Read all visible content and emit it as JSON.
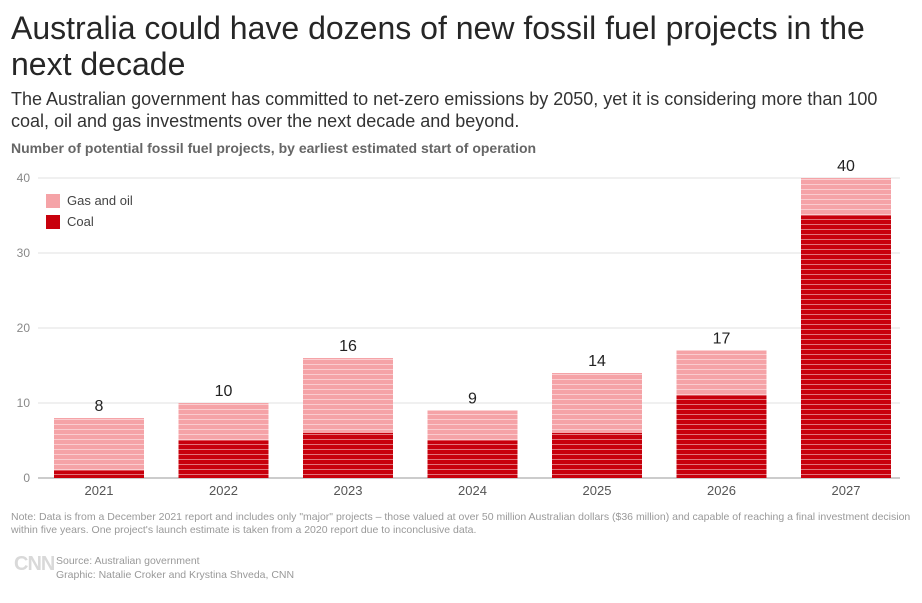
{
  "header": {
    "title": "Australia could have dozens of new fossil fuel projects in the next decade",
    "subtitle": "The Australian government has committed to net-zero emissions by 2050, yet it is considering more than 100 coal, oil and gas investments over the next decade and beyond.",
    "chart_label": "Number of potential fossil fuel projects, by earliest estimated start of operation"
  },
  "footer": {
    "note": "Note: Data is from a December 2021 report and includes only \"major\" projects – those valued at over 50 million Australian dollars ($36 million) and capable of reaching a final investment decision within five years. One project's launch estimate is taken from a 2020 report due to inconclusive data.",
    "logo": "CNN",
    "source": "Source: Australian government",
    "graphic": "Graphic: Natalie Croker and Krystina Shveda, CNN"
  },
  "colors": {
    "coal": "#c8000c",
    "gas_oil": "#f5a3a7",
    "grid": "#e2e2e2",
    "axis": "#999999"
  },
  "chart_data": {
    "type": "bar",
    "stacked": true,
    "categories": [
      "2021",
      "2022",
      "2023",
      "2024",
      "2025",
      "2026",
      "2027"
    ],
    "series": [
      {
        "name": "Coal",
        "values": [
          1,
          5,
          6,
          5,
          6,
          11,
          35
        ]
      },
      {
        "name": "Gas and oil",
        "values": [
          7,
          5,
          10,
          4,
          8,
          6,
          5
        ]
      }
    ],
    "totals": [
      8,
      10,
      16,
      9,
      14,
      17,
      40
    ],
    "ylim": [
      0,
      40
    ],
    "yticks": [
      0,
      10,
      20,
      30,
      40
    ],
    "legend": {
      "position": "top-left",
      "entries": [
        "Gas and oil",
        "Coal"
      ]
    },
    "grid": true
  }
}
